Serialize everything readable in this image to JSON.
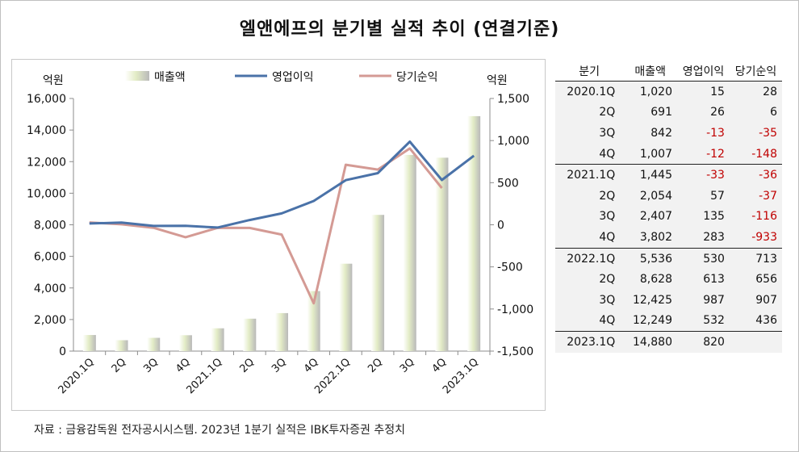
{
  "title": "엘앤에프의 분기별 실적 추이 (연결기준)",
  "source": "자료 : 금융감독원 전자공시시스템. 2023년 1분기 실적은 IBK투자증권 추정치",
  "chart_data": {
    "type": "bar",
    "left_unit": "억원",
    "right_unit": "억원",
    "categories": [
      "2020.1Q",
      "2Q",
      "3Q",
      "4Q",
      "2021.1Q",
      "2Q",
      "3Q",
      "4Q",
      "2022.1Q",
      "2Q",
      "3Q",
      "4Q",
      "2023.1Q"
    ],
    "y_left": {
      "min": 0,
      "max": 16000,
      "step": 2000,
      "ticks": [
        "0",
        "2,000",
        "4,000",
        "6,000",
        "8,000",
        "10,000",
        "12,000",
        "14,000",
        "16,000"
      ]
    },
    "y_right": {
      "min": -1500,
      "max": 1500,
      "step": 500,
      "ticks": [
        "-1,500",
        "-1,000",
        "-500",
        "0",
        "500",
        "1,000",
        "1,500"
      ]
    },
    "series": [
      {
        "name": "매출액",
        "type": "bar",
        "axis": "left",
        "color": "#e3ecc6",
        "values": [
          1020,
          691,
          842,
          1007,
          1445,
          2054,
          2407,
          3802,
          5536,
          8628,
          12425,
          12249,
          14880
        ]
      },
      {
        "name": "영업이익",
        "type": "line",
        "axis": "right",
        "color": "#4a72a8",
        "values": [
          15,
          26,
          -13,
          -12,
          -33,
          57,
          135,
          283,
          530,
          613,
          987,
          532,
          820
        ]
      },
      {
        "name": "당기순익",
        "type": "line",
        "axis": "right",
        "color": "#d49a94",
        "values": [
          28,
          6,
          -35,
          -148,
          -36,
          -37,
          -116,
          -933,
          713,
          656,
          907,
          436,
          null
        ]
      }
    ],
    "grid": false,
    "legend_position": "top"
  },
  "table": {
    "headers": [
      "분기",
      "매출액",
      "영업이익",
      "당기순익"
    ],
    "rows": [
      [
        "2020.1Q",
        "1,020",
        "15",
        "28"
      ],
      [
        "2Q",
        "691",
        "26",
        "6"
      ],
      [
        "3Q",
        "842",
        "-13",
        "-35"
      ],
      [
        "4Q",
        "1,007",
        "-12",
        "-148"
      ],
      [
        "2021.1Q",
        "1,445",
        "-33",
        "-36"
      ],
      [
        "2Q",
        "2,054",
        "57",
        "-37"
      ],
      [
        "3Q",
        "2,407",
        "135",
        "-116"
      ],
      [
        "4Q",
        "3,802",
        "283",
        "-933"
      ],
      [
        "2022.1Q",
        "5,536",
        "530",
        "713"
      ],
      [
        "2Q",
        "8,628",
        "613",
        "656"
      ],
      [
        "3Q",
        "12,425",
        "987",
        "907"
      ],
      [
        "4Q",
        "12,249",
        "532",
        "436"
      ],
      [
        "2023.1Q",
        "14,880",
        "820",
        ""
      ]
    ],
    "negative_color": "#c00000"
  }
}
